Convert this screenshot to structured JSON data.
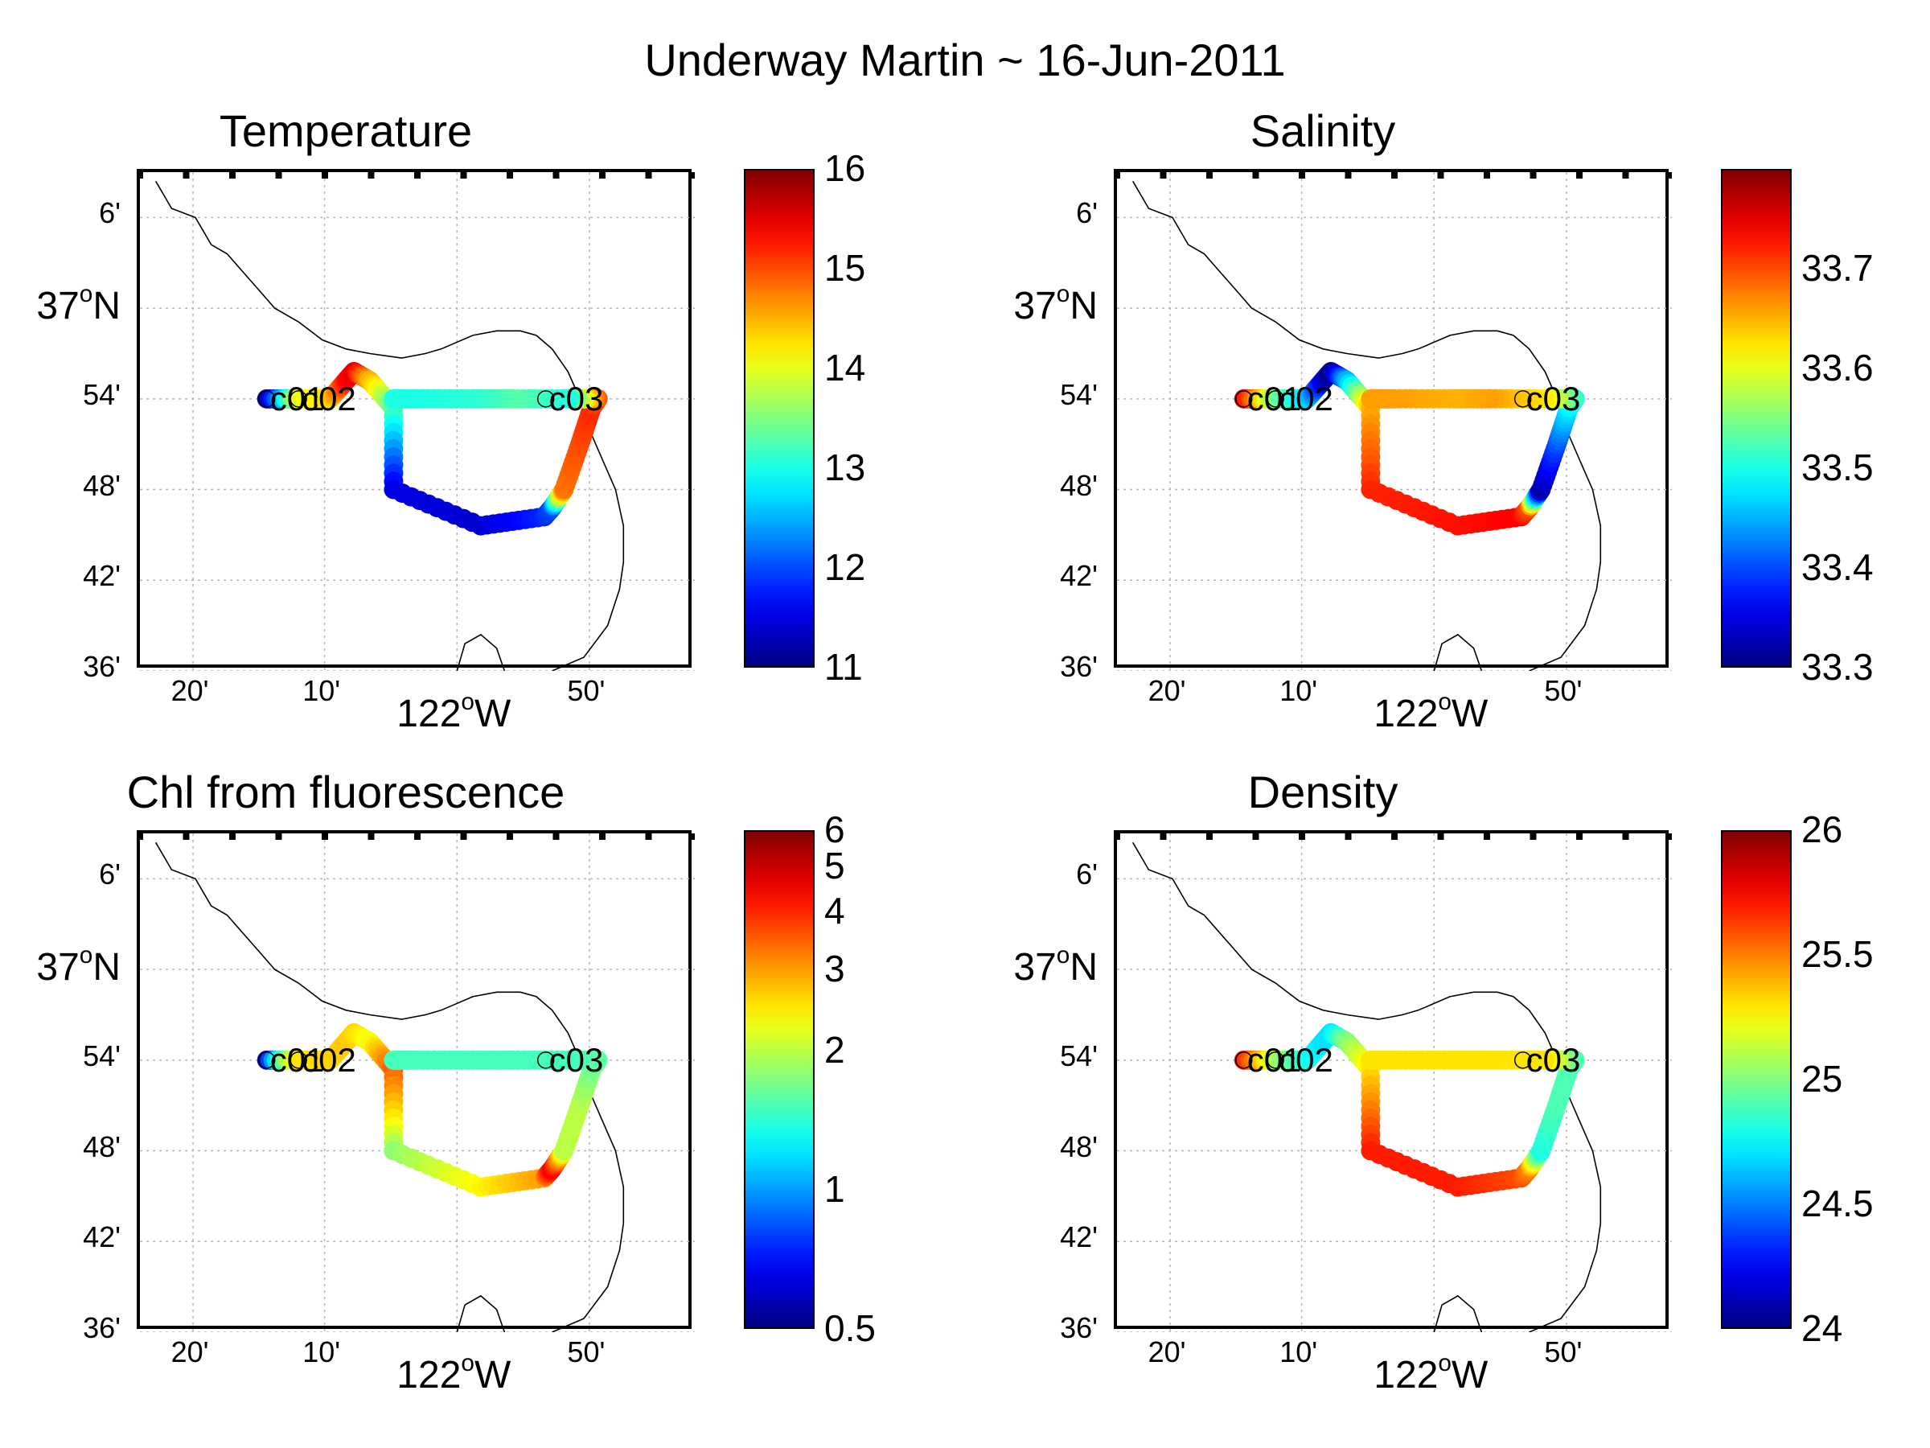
{
  "supertitle": "Underway Martin ~ 16-Jun-2011",
  "lat_ticks": [
    {
      "label": "6'",
      "lat": 37.1
    },
    {
      "label": "54'",
      "lat": 36.9
    },
    {
      "label": "48'",
      "lat": 36.8
    },
    {
      "label": "42'",
      "lat": 36.7
    },
    {
      "label": "36'",
      "lat": 36.6
    }
  ],
  "lat_major": {
    "base": "37",
    "sup": "o",
    "suffix": "N",
    "lat": 37.0
  },
  "lon_ticks": [
    {
      "label": "20'",
      "lon": -122.333
    },
    {
      "label": "10'",
      "lon": -122.167
    },
    {
      "label": "50'",
      "lon": -121.833
    }
  ],
  "lon_major": {
    "base": "122",
    "sup": "o",
    "suffix": "W",
    "lon": -122.0
  },
  "stations": [
    {
      "label": "c01",
      "lon": -122.24,
      "lat": 36.9
    },
    {
      "label": "c02",
      "lon": -122.2,
      "lat": 36.9
    },
    {
      "label": "c03",
      "lon": -121.888,
      "lat": 36.9
    }
  ],
  "colors": {
    "colormap": "jet",
    "coast": "#000000",
    "grid": "#b5b5b5"
  },
  "chart_data": [
    {
      "type": "scatter",
      "title": "Temperature",
      "xlabel": "",
      "ylabel": "",
      "xlim": [
        -122.4,
        -121.7
      ],
      "ylim": [
        36.6,
        37.15
      ],
      "grid": true,
      "colorbar": {
        "min": 11,
        "max": 16,
        "scale": "linear",
        "ticks": [
          "11",
          "12",
          "13",
          "14",
          "15",
          "16"
        ],
        "tick_values": [
          11,
          12,
          13,
          14,
          15,
          16
        ]
      },
      "track": {
        "lon": [
          -122.24,
          -122.2,
          -122.16,
          -122.14,
          -122.13,
          -122.11,
          -122.08,
          -122.08,
          -121.97,
          -121.89,
          -121.88,
          -121.865,
          -121.845,
          -121.83,
          -121.822,
          -121.826,
          -121.86,
          -121.93,
          -121.98,
          -122.05,
          -122.08,
          -122.07
        ],
        "lat": [
          36.9,
          36.9,
          36.9,
          36.92,
          36.93,
          36.92,
          36.89,
          36.8,
          36.76,
          36.77,
          36.78,
          36.8,
          36.85,
          36.89,
          36.9,
          36.9,
          36.9,
          36.9,
          36.9,
          36.9,
          36.9,
          36.9
        ],
        "value": [
          11.2,
          14.0,
          14.3,
          15.3,
          15.5,
          14.5,
          13.3,
          11.5,
          11.4,
          11.8,
          12.0,
          14.8,
          15.0,
          15.2,
          15.0,
          14.8,
          13.0,
          13.3,
          13.1,
          13.0,
          13.0,
          13.0
        ]
      }
    },
    {
      "type": "scatter",
      "title": "Salinity",
      "xlabel": "",
      "ylabel": "",
      "xlim": [
        -122.4,
        -121.7
      ],
      "ylim": [
        36.6,
        37.15
      ],
      "grid": true,
      "colorbar": {
        "min": 33.3,
        "max": 33.8,
        "scale": "linear",
        "ticks": [
          "33.3",
          "33.4",
          "33.5",
          "33.6",
          "33.7"
        ],
        "tick_values": [
          33.3,
          33.4,
          33.5,
          33.6,
          33.7
        ]
      },
      "track": {
        "lon": [
          -122.24,
          -122.2,
          -122.16,
          -122.14,
          -122.13,
          -122.11,
          -122.08,
          -122.08,
          -121.97,
          -121.89,
          -121.88,
          -121.865,
          -121.845,
          -121.83,
          -121.822,
          -121.826,
          -121.86,
          -121.93,
          -121.98,
          -122.05,
          -122.08,
          -122.07
        ],
        "lat": [
          36.9,
          36.9,
          36.9,
          36.92,
          36.93,
          36.92,
          36.89,
          36.8,
          36.76,
          36.77,
          36.78,
          36.8,
          36.85,
          36.89,
          36.9,
          36.9,
          36.9,
          36.9,
          36.9,
          36.9,
          36.9,
          36.9
        ],
        "value": [
          33.74,
          33.55,
          33.47,
          33.35,
          33.3,
          33.45,
          33.65,
          33.72,
          33.73,
          33.74,
          33.7,
          33.32,
          33.4,
          33.48,
          33.5,
          33.52,
          33.62,
          33.66,
          33.65,
          33.66,
          33.66,
          33.66
        ]
      }
    },
    {
      "type": "scatter",
      "title": "Chl from fluorescence",
      "xlabel": "",
      "ylabel": "",
      "xlim": [
        -122.4,
        -121.7
      ],
      "ylim": [
        36.6,
        37.15
      ],
      "grid": true,
      "colorbar": {
        "min": 0.5,
        "max": 6,
        "scale": "log",
        "ticks": [
          "0.5",
          "1",
          "2",
          "3",
          "4",
          "5",
          "6"
        ],
        "tick_values": [
          0.5,
          1,
          2,
          3,
          4,
          5,
          6
        ]
      },
      "track": {
        "lon": [
          -122.24,
          -122.2,
          -122.16,
          -122.14,
          -122.13,
          -122.11,
          -122.08,
          -122.08,
          -121.97,
          -121.89,
          -121.88,
          -121.865,
          -121.845,
          -121.83,
          -121.822,
          -121.826,
          -121.86,
          -121.93,
          -121.98,
          -122.05,
          -122.08,
          -122.07
        ],
        "lat": [
          36.9,
          36.9,
          36.9,
          36.92,
          36.93,
          36.92,
          36.89,
          36.8,
          36.76,
          36.77,
          36.78,
          36.8,
          36.85,
          36.89,
          36.9,
          36.9,
          36.9,
          36.9,
          36.9,
          36.9,
          36.9,
          36.9
        ],
        "value": [
          0.6,
          2.5,
          2.6,
          2.7,
          2.6,
          2.3,
          3.5,
          1.8,
          2.4,
          3.0,
          4.5,
          2.0,
          2.0,
          1.7,
          1.6,
          1.6,
          1.5,
          1.5,
          1.5,
          1.5,
          1.5,
          1.5
        ]
      }
    },
    {
      "type": "scatter",
      "title": "Density",
      "xlabel": "",
      "ylabel": "",
      "xlim": [
        -122.4,
        -121.7
      ],
      "ylim": [
        36.6,
        37.15
      ],
      "grid": true,
      "colorbar": {
        "min": 24,
        "max": 26,
        "scale": "linear",
        "ticks": [
          "24",
          "24.5",
          "25",
          "25.5",
          "26"
        ],
        "tick_values": [
          24,
          24.5,
          25,
          25.5,
          26
        ]
      },
      "track": {
        "lon": [
          -122.24,
          -122.2,
          -122.16,
          -122.14,
          -122.13,
          -122.11,
          -122.08,
          -122.08,
          -121.97,
          -121.89,
          -121.88,
          -121.865,
          -121.845,
          -121.83,
          -121.822,
          -121.826,
          -121.86,
          -121.93,
          -121.98,
          -122.05,
          -122.08,
          -122.07
        ],
        "lat": [
          36.9,
          36.9,
          36.9,
          36.92,
          36.93,
          36.92,
          36.89,
          36.8,
          36.76,
          36.77,
          36.78,
          36.8,
          36.85,
          36.89,
          36.9,
          36.9,
          36.9,
          36.9,
          36.9,
          36.9,
          36.9,
          36.9
        ],
        "value": [
          25.7,
          25.1,
          24.8,
          24.7,
          24.7,
          25.0,
          25.3,
          25.7,
          25.7,
          25.6,
          25.5,
          24.8,
          24.9,
          24.9,
          24.9,
          24.9,
          25.3,
          25.3,
          25.3,
          25.3,
          25.3,
          25.3
        ]
      }
    }
  ]
}
